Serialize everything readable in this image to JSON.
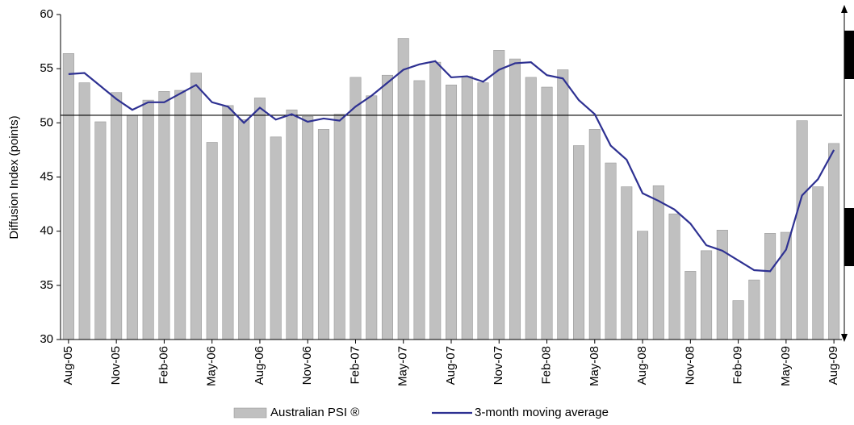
{
  "chart_data": {
    "type": "bar_line",
    "y_label": "Diffusion Index (points)",
    "categories": [
      "Aug-05",
      null,
      null,
      "Nov-05",
      null,
      null,
      "Feb-06",
      null,
      null,
      "May-06",
      null,
      null,
      "Aug-06",
      null,
      null,
      "Nov-06",
      null,
      null,
      "Feb-07",
      null,
      null,
      "May-07",
      null,
      null,
      "Aug-07",
      null,
      null,
      "Nov-07",
      null,
      null,
      "Feb-08",
      null,
      null,
      "May-08",
      null,
      null,
      "Aug-08",
      null,
      null,
      "Nov-08",
      null,
      null,
      "Feb-09",
      null,
      null,
      "May-09",
      null,
      null,
      "Aug-09"
    ],
    "series": [
      {
        "name": "Australian PSI ®",
        "type": "bar",
        "color": "#c0c0c0",
        "values": [
          56.4,
          53.7,
          50.1,
          52.8,
          50.7,
          52.1,
          52.9,
          53.0,
          54.6,
          48.2,
          51.6,
          50.3,
          52.3,
          48.7,
          51.2,
          50.6,
          49.4,
          50.8,
          54.2,
          52.5,
          54.4,
          57.8,
          53.9,
          55.6,
          53.5,
          54.3,
          53.7,
          56.7,
          55.9,
          54.2,
          53.3,
          54.9,
          47.9,
          49.4,
          46.3,
          44.1,
          40.0,
          44.2,
          41.6,
          36.3,
          38.2,
          40.1,
          33.6,
          35.5,
          39.8,
          39.9,
          50.2,
          44.1,
          48.1
        ]
      },
      {
        "name": "3-month moving average",
        "type": "line",
        "color": "#2e3192",
        "values": [
          54.5,
          54.6,
          53.4,
          52.2,
          51.2,
          51.9,
          51.9,
          52.7,
          53.5,
          51.9,
          51.5,
          50.0,
          51.4,
          50.3,
          50.8,
          50.1,
          50.4,
          50.2,
          51.5,
          52.5,
          53.7,
          54.9,
          55.4,
          55.7,
          54.2,
          54.3,
          53.8,
          54.9,
          55.5,
          55.6,
          54.4,
          54.1,
          52.1,
          50.8,
          47.9,
          46.6,
          43.5,
          42.8,
          42.0,
          40.7,
          38.7,
          38.2,
          37.3,
          36.4,
          36.3,
          38.3,
          43.3,
          44.8,
          47.5
        ]
      }
    ],
    "reference_line": 50.7,
    "ylim": [
      30,
      60
    ],
    "yticks": [
      30,
      35,
      40,
      45,
      50,
      55,
      60
    ]
  }
}
